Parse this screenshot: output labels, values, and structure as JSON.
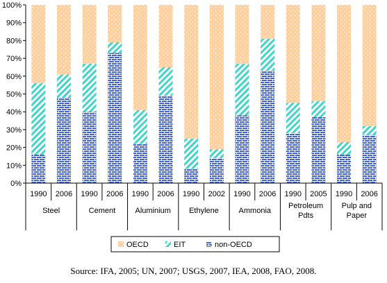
{
  "chart_data": {
    "type": "bar",
    "stacked": true,
    "percent": true,
    "groups": [
      {
        "name": "Steel",
        "years": [
          "1990",
          "2006"
        ]
      },
      {
        "name": "Cement",
        "years": [
          "1990",
          "2006"
        ]
      },
      {
        "name": "Aluminium",
        "years": [
          "1990",
          "2006"
        ]
      },
      {
        "name": "Ethylene",
        "years": [
          "1990",
          "2002"
        ]
      },
      {
        "name": "Ammonia",
        "years": [
          "1990",
          "2006"
        ]
      },
      {
        "name": "Petroleum Pdts",
        "label_lines": [
          "Petroleum",
          "Pdts"
        ],
        "years": [
          "1990",
          "2005"
        ]
      },
      {
        "name": "Pulp and Paper",
        "label_lines": [
          "Pulp and",
          "Paper"
        ],
        "years": [
          "1990",
          "2006"
        ]
      }
    ],
    "series": [
      {
        "name": "non-OECD",
        "color": "#4169e1",
        "pattern": "brick",
        "values": [
          16,
          48,
          40,
          73,
          22,
          49,
          8,
          14,
          38,
          63,
          28,
          37,
          16,
          27
        ]
      },
      {
        "name": "EIT",
        "color": "#40e0d0",
        "pattern": "diagonal",
        "values": [
          40,
          13,
          27,
          6,
          19,
          16,
          17,
          5,
          29,
          18,
          17,
          9,
          7,
          5
        ]
      },
      {
        "name": "OECD",
        "color": "#ffc896",
        "pattern": "dots",
        "values": [
          44,
          39,
          33,
          21,
          59,
          35,
          75,
          81,
          33,
          19,
          55,
          54,
          77,
          68
        ]
      }
    ],
    "ylim": [
      0,
      100
    ],
    "yticks": [
      "0%",
      "10%",
      "20%",
      "30%",
      "40%",
      "50%",
      "60%",
      "70%",
      "80%",
      "90%",
      "100%"
    ],
    "ytick_values": [
      0,
      10,
      20,
      30,
      40,
      50,
      60,
      70,
      80,
      90,
      100
    ],
    "legend": [
      "OECD",
      "EIT",
      "non-OECD"
    ],
    "legend_position": "bottom",
    "grid": false
  },
  "source": "Source: IFA, 2005; UN, 2007; USGS, 2007, IEA, 2008, FAO, 2008."
}
